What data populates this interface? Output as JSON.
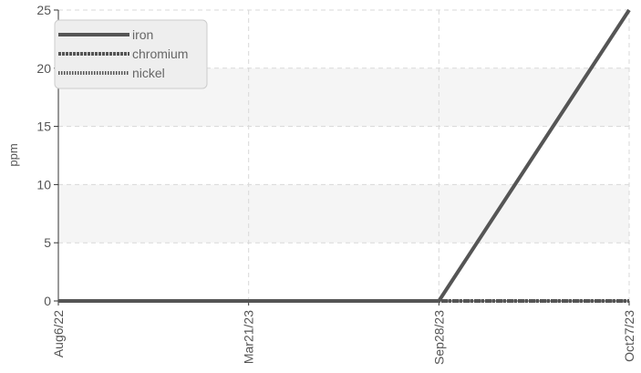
{
  "chart_data": {
    "type": "line",
    "title": "",
    "xlabel": "",
    "ylabel": "ppm",
    "ylim": [
      0,
      25
    ],
    "yticks": [
      "0",
      "5",
      "10",
      "15",
      "20",
      "25"
    ],
    "x": [
      "Aug6/22",
      "Mar21/23",
      "Sep28/23",
      "Oct27/23"
    ],
    "series": [
      {
        "name": "iron",
        "values": [
          0,
          0,
          0,
          25
        ],
        "style": "solid"
      },
      {
        "name": "chromium",
        "values": [
          0,
          0,
          0,
          0
        ],
        "style": "dashed"
      },
      {
        "name": "nickel",
        "values": [
          0,
          0,
          0,
          0
        ],
        "style": "dotted"
      }
    ],
    "grid": true,
    "legend": "top-left",
    "colors": {
      "line": "#555555",
      "grid": "#d9d9d9",
      "band": "#f5f5f5",
      "axis": "#333333"
    }
  }
}
